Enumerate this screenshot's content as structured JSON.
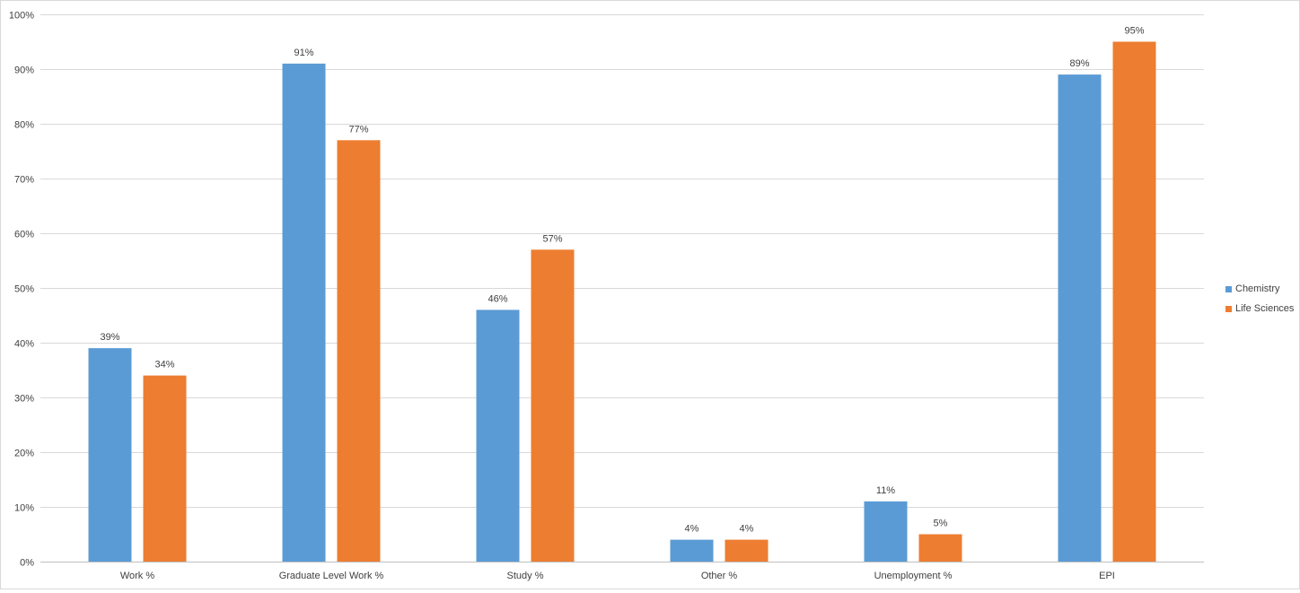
{
  "chart_data": {
    "type": "bar",
    "categories": [
      "Work %",
      "Graduate Level Work %",
      "Study %",
      "Other %",
      "Unemployment %",
      "EPI"
    ],
    "series": [
      {
        "name": "Chemistry",
        "values": [
          39,
          91,
          46,
          4,
          11,
          89
        ],
        "color": "#5b9bd5"
      },
      {
        "name": "Life Sciences",
        "values": [
          34,
          77,
          57,
          4,
          5,
          95
        ],
        "color": "#ed7d31"
      }
    ],
    "data_labels": [
      [
        "39%",
        "91%",
        "46%",
        "4%",
        "11%",
        "89%"
      ],
      [
        "34%",
        "77%",
        "57%",
        "4%",
        "5%",
        "95%"
      ]
    ],
    "ylim": [
      0,
      100
    ],
    "y_ticks": [
      0,
      10,
      20,
      30,
      40,
      50,
      60,
      70,
      80,
      90,
      100
    ],
    "y_tick_labels": [
      "0%",
      "10%",
      "20%",
      "30%",
      "40%",
      "50%",
      "60%",
      "70%",
      "80%",
      "90%",
      "100%"
    ],
    "grid": true,
    "legend_position": "right",
    "gridline_color": "#d9d9d9"
  }
}
